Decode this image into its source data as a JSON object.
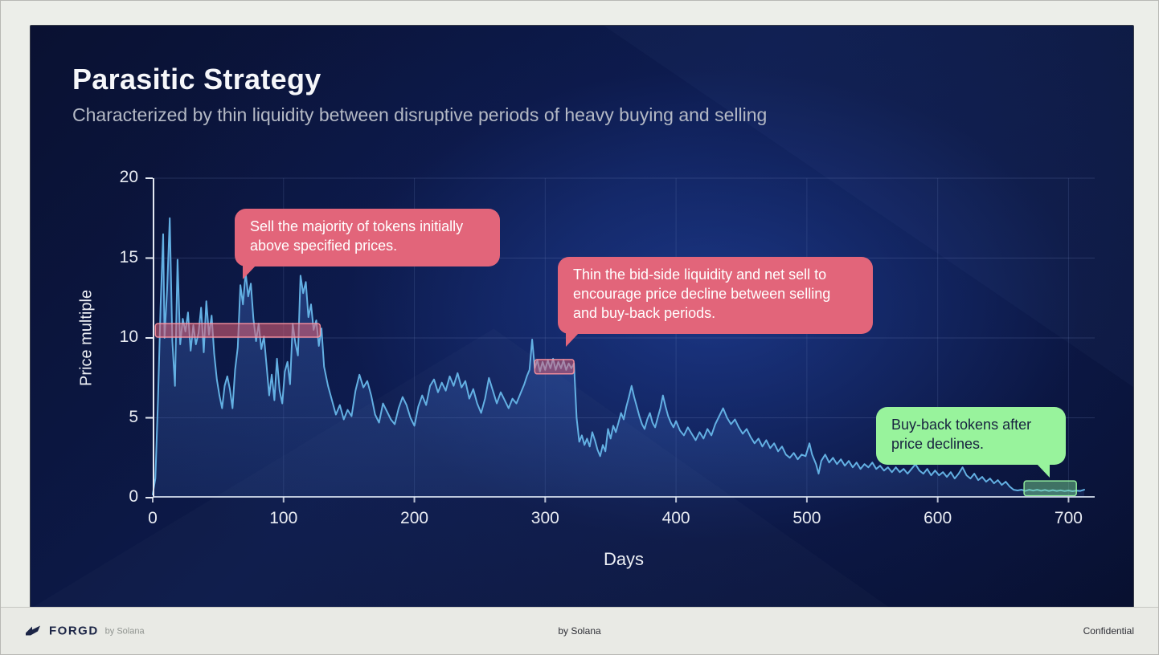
{
  "slide": {
    "title": "Parasitic Strategy",
    "subtitle": "Characterized by thin liquidity between disruptive periods of heavy buying and selling"
  },
  "footer": {
    "brand": "FORGD",
    "brand_suffix": "by Solana",
    "center": "by Solana",
    "right": "Confidential"
  },
  "chart_data": {
    "type": "area",
    "title": "",
    "xlabel": "Days",
    "ylabel": "Price multiple",
    "xlim": [
      0,
      720
    ],
    "ylim": [
      0,
      20
    ],
    "x_ticks": [
      0,
      100,
      200,
      300,
      400,
      500,
      600,
      700
    ],
    "y_ticks": [
      0,
      5,
      10,
      15,
      20
    ],
    "grid": true,
    "legend": "none",
    "line_color": "#63b0e3",
    "area_color": "#3e68bc",
    "points": [
      [
        0,
        0.2
      ],
      [
        2,
        1.2
      ],
      [
        4,
        6
      ],
      [
        6,
        12
      ],
      [
        8,
        16.5
      ],
      [
        9,
        10
      ],
      [
        11,
        13
      ],
      [
        13,
        17.5
      ],
      [
        15,
        9.8
      ],
      [
        17,
        7
      ],
      [
        19,
        14.9
      ],
      [
        21,
        9.6
      ],
      [
        23,
        11.2
      ],
      [
        25,
        10.4
      ],
      [
        27,
        11.6
      ],
      [
        29,
        9.2
      ],
      [
        31,
        10.8
      ],
      [
        33,
        9.6
      ],
      [
        35,
        10.3
      ],
      [
        37,
        11.9
      ],
      [
        39,
        9.1
      ],
      [
        41,
        12.3
      ],
      [
        43,
        10.2
      ],
      [
        45,
        11.4
      ],
      [
        47,
        9
      ],
      [
        49,
        7.4
      ],
      [
        51,
        6.4
      ],
      [
        53,
        5.6
      ],
      [
        55,
        7
      ],
      [
        57,
        7.6
      ],
      [
        59,
        6.8
      ],
      [
        61,
        5.6
      ],
      [
        63,
        8
      ],
      [
        65,
        9.4
      ],
      [
        67,
        13.3
      ],
      [
        69,
        12.1
      ],
      [
        71,
        14.1
      ],
      [
        73,
        12.6
      ],
      [
        75,
        13.4
      ],
      [
        77,
        11.2
      ],
      [
        79,
        9.8
      ],
      [
        81,
        10.9
      ],
      [
        83,
        9.3
      ],
      [
        85,
        10.1
      ],
      [
        87,
        8.3
      ],
      [
        89,
        6.4
      ],
      [
        91,
        7.7
      ],
      [
        93,
        6.1
      ],
      [
        95,
        8.7
      ],
      [
        97,
        6.7
      ],
      [
        99,
        5.9
      ],
      [
        101,
        7.9
      ],
      [
        103,
        8.5
      ],
      [
        105,
        7.1
      ],
      [
        107,
        10.9
      ],
      [
        109,
        9.7
      ],
      [
        111,
        8.9
      ],
      [
        113,
        13.9
      ],
      [
        115,
        12.8
      ],
      [
        117,
        13.5
      ],
      [
        119,
        11.3
      ],
      [
        121,
        12.1
      ],
      [
        123,
        10.5
      ],
      [
        125,
        11.1
      ],
      [
        127,
        9.5
      ],
      [
        129,
        10.6
      ],
      [
        131,
        8.2
      ],
      [
        134,
        7
      ],
      [
        137,
        6.1
      ],
      [
        140,
        5.2
      ],
      [
        143,
        5.8
      ],
      [
        146,
        4.9
      ],
      [
        149,
        5.5
      ],
      [
        152,
        5.1
      ],
      [
        155,
        6.7
      ],
      [
        158,
        7.7
      ],
      [
        161,
        6.9
      ],
      [
        164,
        7.3
      ],
      [
        167,
        6.4
      ],
      [
        170,
        5.2
      ],
      [
        173,
        4.7
      ],
      [
        176,
        5.9
      ],
      [
        179,
        5.4
      ],
      [
        182,
        4.9
      ],
      [
        185,
        4.6
      ],
      [
        188,
        5.6
      ],
      [
        191,
        6.3
      ],
      [
        194,
        5.8
      ],
      [
        197,
        5
      ],
      [
        200,
        4.5
      ],
      [
        203,
        5.7
      ],
      [
        206,
        6.4
      ],
      [
        209,
        5.8
      ],
      [
        212,
        7
      ],
      [
        215,
        7.4
      ],
      [
        218,
        6.6
      ],
      [
        221,
        7.2
      ],
      [
        224,
        6.7
      ],
      [
        227,
        7.6
      ],
      [
        230,
        7
      ],
      [
        233,
        7.8
      ],
      [
        236,
        6.9
      ],
      [
        239,
        7.3
      ],
      [
        242,
        6.2
      ],
      [
        245,
        6.8
      ],
      [
        248,
        5.9
      ],
      [
        251,
        5.3
      ],
      [
        254,
        6.2
      ],
      [
        257,
        7.5
      ],
      [
        260,
        6.7
      ],
      [
        263,
        5.9
      ],
      [
        266,
        6.6
      ],
      [
        269,
        6.1
      ],
      [
        272,
        5.6
      ],
      [
        275,
        6.2
      ],
      [
        278,
        5.9
      ],
      [
        281,
        6.5
      ],
      [
        284,
        7.1
      ],
      [
        286,
        7.6
      ],
      [
        288,
        8
      ],
      [
        290,
        9.9
      ],
      [
        292,
        8.1
      ],
      [
        294,
        8.6
      ],
      [
        296,
        7.9
      ],
      [
        298,
        8.5
      ],
      [
        300,
        8
      ],
      [
        302,
        8.6
      ],
      [
        304,
        8.1
      ],
      [
        306,
        8.7
      ],
      [
        308,
        8
      ],
      [
        310,
        8.5
      ],
      [
        312,
        8.1
      ],
      [
        314,
        8.6
      ],
      [
        316,
        8
      ],
      [
        318,
        8.4
      ],
      [
        320,
        8.1
      ],
      [
        322,
        8.4
      ],
      [
        324,
        5
      ],
      [
        326,
        3.5
      ],
      [
        328,
        3.9
      ],
      [
        330,
        3.3
      ],
      [
        332,
        3.7
      ],
      [
        334,
        3.2
      ],
      [
        336,
        4.1
      ],
      [
        338,
        3.6
      ],
      [
        340,
        3
      ],
      [
        342,
        2.6
      ],
      [
        344,
        3.3
      ],
      [
        346,
        2.9
      ],
      [
        348,
        4.3
      ],
      [
        350,
        3.7
      ],
      [
        352,
        4.5
      ],
      [
        354,
        4.1
      ],
      [
        356,
        4.7
      ],
      [
        358,
        5.3
      ],
      [
        360,
        4.9
      ],
      [
        362,
        5.7
      ],
      [
        364,
        6.3
      ],
      [
        366,
        7
      ],
      [
        368,
        6.3
      ],
      [
        370,
        5.7
      ],
      [
        372,
        5.1
      ],
      [
        374,
        4.6
      ],
      [
        376,
        4.3
      ],
      [
        378,
        4.9
      ],
      [
        380,
        5.3
      ],
      [
        382,
        4.7
      ],
      [
        384,
        4.4
      ],
      [
        386,
        5
      ],
      [
        388,
        5.6
      ],
      [
        390,
        6.4
      ],
      [
        392,
        5.7
      ],
      [
        394,
        5.1
      ],
      [
        396,
        4.7
      ],
      [
        398,
        4.4
      ],
      [
        400,
        4.8
      ],
      [
        403,
        4.2
      ],
      [
        406,
        3.9
      ],
      [
        409,
        4.4
      ],
      [
        412,
        4
      ],
      [
        415,
        3.6
      ],
      [
        418,
        4.1
      ],
      [
        421,
        3.7
      ],
      [
        424,
        4.3
      ],
      [
        427,
        3.9
      ],
      [
        430,
        4.6
      ],
      [
        433,
        5.1
      ],
      [
        436,
        5.6
      ],
      [
        439,
        5
      ],
      [
        442,
        4.6
      ],
      [
        445,
        4.9
      ],
      [
        448,
        4.4
      ],
      [
        451,
        4
      ],
      [
        454,
        4.3
      ],
      [
        457,
        3.8
      ],
      [
        460,
        3.4
      ],
      [
        463,
        3.7
      ],
      [
        466,
        3.2
      ],
      [
        469,
        3.6
      ],
      [
        472,
        3.1
      ],
      [
        475,
        3.4
      ],
      [
        478,
        2.9
      ],
      [
        481,
        3.2
      ],
      [
        484,
        2.7
      ],
      [
        487,
        2.5
      ],
      [
        490,
        2.8
      ],
      [
        493,
        2.4
      ],
      [
        496,
        2.7
      ],
      [
        499,
        2.6
      ],
      [
        502,
        3.4
      ],
      [
        504,
        2.7
      ],
      [
        507,
        2.1
      ],
      [
        509,
        1.5
      ],
      [
        511,
        2.3
      ],
      [
        514,
        2.7
      ],
      [
        517,
        2.2
      ],
      [
        520,
        2.5
      ],
      [
        523,
        2.1
      ],
      [
        526,
        2.4
      ],
      [
        529,
        2
      ],
      [
        532,
        2.3
      ],
      [
        535,
        1.9
      ],
      [
        538,
        2.2
      ],
      [
        541,
        1.8
      ],
      [
        544,
        2.1
      ],
      [
        547,
        1.9
      ],
      [
        550,
        2.2
      ],
      [
        553,
        1.8
      ],
      [
        556,
        2
      ],
      [
        559,
        1.7
      ],
      [
        562,
        1.9
      ],
      [
        565,
        1.6
      ],
      [
        568,
        1.9
      ],
      [
        571,
        1.6
      ],
      [
        574,
        1.8
      ],
      [
        577,
        1.5
      ],
      [
        580,
        1.8
      ],
      [
        583,
        2.1
      ],
      [
        586,
        1.7
      ],
      [
        589,
        1.5
      ],
      [
        592,
        1.8
      ],
      [
        595,
        1.4
      ],
      [
        598,
        1.7
      ],
      [
        601,
        1.4
      ],
      [
        604,
        1.6
      ],
      [
        607,
        1.3
      ],
      [
        610,
        1.6
      ],
      [
        613,
        1.2
      ],
      [
        616,
        1.5
      ],
      [
        619,
        1.9
      ],
      [
        622,
        1.4
      ],
      [
        625,
        1.2
      ],
      [
        628,
        1.5
      ],
      [
        631,
        1.1
      ],
      [
        634,
        1.3
      ],
      [
        637,
        1
      ],
      [
        640,
        1.2
      ],
      [
        643,
        0.9
      ],
      [
        646,
        1.1
      ],
      [
        649,
        0.8
      ],
      [
        652,
        1
      ],
      [
        655,
        0.7
      ],
      [
        658,
        0.5
      ],
      [
        661,
        0.45
      ],
      [
        664,
        0.5
      ],
      [
        667,
        0.42
      ],
      [
        670,
        0.5
      ],
      [
        673,
        0.44
      ],
      [
        676,
        0.5
      ],
      [
        679,
        0.43
      ],
      [
        682,
        0.48
      ],
      [
        685,
        0.42
      ],
      [
        688,
        0.47
      ],
      [
        691,
        0.42
      ],
      [
        694,
        0.46
      ],
      [
        697,
        0.41
      ],
      [
        700,
        0.45
      ],
      [
        703,
        0.4
      ],
      [
        706,
        0.44
      ],
      [
        709,
        0.42
      ],
      [
        712,
        0.5
      ]
    ],
    "bands": [
      {
        "label": "initial-sell-range",
        "x0": 2,
        "x1": 128,
        "y0": 10.05,
        "y1": 10.9,
        "fill": "rgba(229,98,116,0.55)",
        "stroke": "rgba(255,148,160,0.9)"
      },
      {
        "label": "net-sell-range",
        "x0": 292,
        "x1": 322,
        "y0": 7.75,
        "y1": 8.65,
        "fill": "rgba(229,98,116,0.5)",
        "stroke": "rgba(255,148,160,0.9)"
      },
      {
        "label": "buy-back-range",
        "x0": 666,
        "x1": 706,
        "y0": 0.12,
        "y1": 1.05,
        "fill": "rgba(128,228,148,0.45)",
        "stroke": "rgba(150,242,160,0.95)"
      }
    ],
    "annotations": [
      {
        "text": "Sell the majority of tokens initially above specified prices.",
        "color": "#e2657a",
        "text_color": "#ffffff",
        "tail": "bottom-left"
      },
      {
        "text": "Thin the bid-side liquidity and net sell to encourage price decline between selling and buy-back periods.",
        "color": "#e2657a",
        "text_color": "#ffffff",
        "tail": "bottom-left"
      },
      {
        "text": "Buy-back tokens after price declines.",
        "color": "#98f39c",
        "text_color": "#17223f",
        "tail": "bottom-right"
      }
    ]
  }
}
